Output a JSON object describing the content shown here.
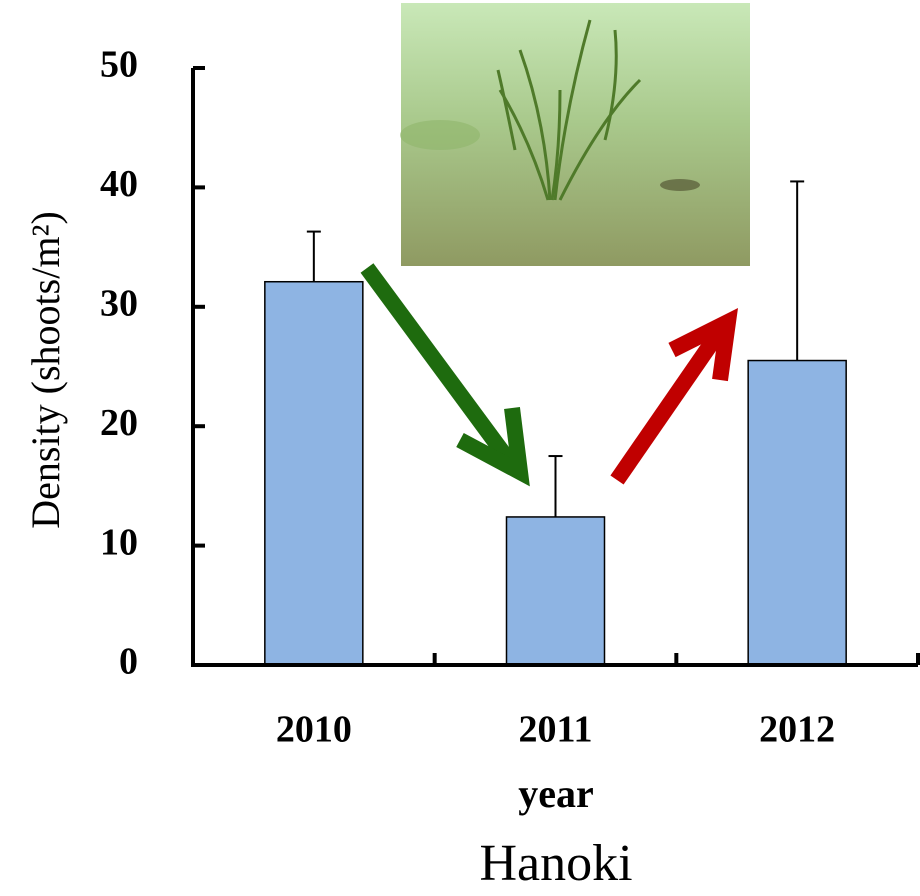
{
  "chart_data": {
    "type": "bar",
    "categories": [
      "2010",
      "2011",
      "2012"
    ],
    "values": [
      32.1,
      12.4,
      25.5
    ],
    "errors": [
      4.2,
      5.1,
      15.0
    ],
    "color": "#8eb4e3",
    "ylim": [
      0,
      50
    ],
    "yticks": [
      0,
      10,
      20,
      30,
      40,
      50
    ],
    "y_label": "Density (shoots/m²)",
    "x_label": "year",
    "caption": "Hanoki"
  }
}
